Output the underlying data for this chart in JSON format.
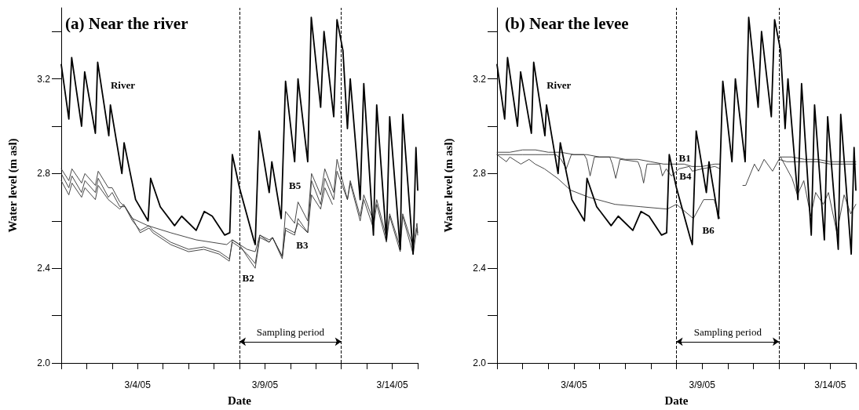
{
  "chart_data": [
    {
      "type": "line",
      "title": "(a) Near the river",
      "xlabel": "Date",
      "ylabel": "Water level (m asl)",
      "marker": "none",
      "grid": false,
      "xlim": [
        "--03-01",
        "--03-15"
      ],
      "xticks": [
        {
          "value": "--03-01",
          "label": null
        },
        {
          "value": "--03-02",
          "label": null
        },
        {
          "value": "--03-03",
          "label": null
        },
        {
          "value": "--03-04",
          "label": "3/4/05"
        },
        {
          "value": "--03-05",
          "label": null
        },
        {
          "value": "--03-06",
          "label": null
        },
        {
          "value": "--03-07",
          "label": null
        },
        {
          "value": "--03-08",
          "label": null
        },
        {
          "value": "--03-09",
          "label": "3/9/05"
        },
        {
          "value": "--03-10",
          "label": null
        },
        {
          "value": "--03-11",
          "label": null
        },
        {
          "value": "--03-12",
          "label": null
        },
        {
          "value": "--03-13",
          "label": null
        },
        {
          "value": "--03-14",
          "label": "3/14/05"
        },
        {
          "value": "--03-15",
          "label": null
        }
      ],
      "ylim": [
        2.0,
        3.5
      ],
      "yticks": [
        {
          "value": 2,
          "label": "2.0"
        },
        {
          "value": 2.2,
          "label": null
        },
        2.4,
        {
          "value": 2.6,
          "label": null
        },
        2.8,
        {
          "value": 3.0,
          "label": null
        },
        3.2,
        {
          "value": 3.4,
          "label": null
        }
      ],
      "ref_lines": [
        {
          "axis": "x",
          "value": "--03-08",
          "line_style": "dashed"
        },
        {
          "axis": "x",
          "value": "--03-12",
          "line_style": "dashed"
        }
      ],
      "annotations": [
        "Sampling period"
      ],
      "series": [
        {
          "name": "River",
          "color": "#000000",
          "x": [
            "--03-01T00:00",
            "--03-01T07:10",
            "--03-01T09:50",
            "--03-01T19:10",
            "--03-01T22:05",
            "--03-02T08:10",
            "--03-02T10:20",
            "--03-02T20:50",
            "--03-02T22:20",
            "--03-03T09:10",
            "--03-03T11:15",
            "--03-03T22:05",
            "--03-04T09:50",
            "--03-04T12:15",
            "--03-04T21:20",
            "--03-05T10:50",
            "--03-05T17:30",
            "--03-06T07:10",
            "--03-06T14:50",
            "--03-06T22:20",
            "--03-07T10:05",
            "--03-07T14:50",
            "--03-07T17:15",
            "--03-08T00:00",
            "--03-08T13:25",
            "--03-08T14:50",
            "--03-08T18:30",
            "--03-09T04:00",
            "--03-09T06:30",
            "--03-09T15:20",
            "--03-09T19:25",
            "--03-10T04:00",
            "--03-10T07:10",
            "--03-10T16:20",
            "--03-10T19:40",
            "--03-11T04:30",
            "--03-11T07:40",
            "--03-11T16:50",
            "--03-11T19:55",
            "--03-12T01:30",
            "--03-12T05:45",
            "--03-12T08:25",
            "--03-12T17:45",
            "--03-12T21:10",
            "--03-13T06:15",
            "--03-13T09:20",
            "--03-13T18:30",
            "--03-13T21:35",
            "--03-14T07:30",
            "--03-14T09:50",
            "--03-14T19:40",
            "--03-14T22:20",
            "--03-15T00:00"
          ],
          "values": [
            3.26,
            3.03,
            3.29,
            3.0,
            3.23,
            2.97,
            3.27,
            2.96,
            3.09,
            2.8,
            2.93,
            2.69,
            2.6,
            2.78,
            2.66,
            2.58,
            2.62,
            2.56,
            2.64,
            2.62,
            2.54,
            2.55,
            2.88,
            2.74,
            2.52,
            2.5,
            2.98,
            2.72,
            2.85,
            2.61,
            3.19,
            2.85,
            3.2,
            2.85,
            3.46,
            3.08,
            3.4,
            3.04,
            3.45,
            3.32,
            2.99,
            3.2,
            2.69,
            3.18,
            2.54,
            3.09,
            2.52,
            3.04,
            2.48,
            3.05,
            2.46,
            2.91,
            2.73
          ]
        },
        {
          "name": "B5",
          "color": "#333333",
          "x": [
            "--03-01T00:00",
            "--03-01T07:10",
            "--03-01T10:05",
            "--03-01T19:10",
            "--03-01T22:20",
            "--03-02T08:10",
            "--03-02T10:50",
            "--03-02T20:25",
            "--03-03T00:00",
            "--03-03T07:10",
            "--03-03T12:00",
            "--03-03T19:10",
            "--03-04T09:35",
            "--03-05T07:10",
            "--03-06T07:10",
            "--03-07T12:00",
            "--03-07T17:15",
            "--03-08T07:10",
            "--03-08T14:50",
            "--03-08T19:10",
            "--03-09T04:00",
            "--03-09T07:10",
            "--03-09T16:20",
            "--03-09T19:25",
            "--03-10T04:00",
            "--03-10T07:10",
            "--03-10T16:20",
            "--03-10T19:55",
            "--03-11T04:30",
            "--03-11T08:25",
            "--03-11T16:50",
            "--03-11T19:55",
            "--03-12T05:45",
            "--03-12T08:25",
            "--03-12T17:45",
            "--03-12T21:10",
            "--03-13T06:15",
            "--03-13T09:20",
            "--03-13T18:30",
            "--03-13T21:35",
            "--03-14T07:30",
            "--03-14T09:50",
            "--03-14T19:40",
            "--03-14T23:15",
            "--03-15T00:00"
          ],
          "values": [
            2.82,
            2.77,
            2.82,
            2.76,
            2.8,
            2.75,
            2.81,
            2.74,
            2.74,
            2.68,
            2.66,
            2.61,
            2.58,
            2.55,
            2.52,
            2.5,
            2.52,
            2.48,
            2.47,
            2.54,
            2.52,
            2.53,
            2.45,
            2.64,
            2.59,
            2.68,
            2.6,
            2.8,
            2.71,
            2.82,
            2.72,
            2.86,
            2.69,
            2.77,
            2.62,
            2.71,
            2.6,
            2.69,
            2.53,
            2.63,
            2.49,
            2.63,
            2.49,
            2.59,
            2.55
          ]
        },
        {
          "name": "B2",
          "color": "#333333",
          "x": [
            "--03-01T00:00",
            "--03-01T07:10",
            "--03-01T10:05",
            "--03-01T19:10",
            "--03-01T22:20",
            "--03-02T08:10",
            "--03-02T10:50",
            "--03-02T20:25",
            "--03-03T07:10",
            "--03-03T10:50",
            "--03-03T19:10",
            "--03-04T02:25",
            "--03-04T10:50",
            "--03-04T14:25",
            "--03-05T07:10",
            "--03-06T00:00",
            "--03-06T14:25",
            "--03-07T04:50",
            "--03-07T14:25",
            "--03-07T17:15",
            "--03-08T00:00",
            "--03-08T07:10",
            "--03-08T14:50",
            "--03-08T19:10",
            "--03-09T04:00",
            "--03-09T07:10",
            "--03-09T16:20",
            "--03-09T19:25",
            "--03-10T04:00",
            "--03-10T07:10",
            "--03-10T16:20",
            "--03-10T19:55",
            "--03-11T04:30",
            "--03-11T08:25",
            "--03-11T16:50",
            "--03-11T19:55",
            "--03-12T05:45",
            "--03-12T08:25",
            "--03-12T17:45",
            "--03-12T21:10",
            "--03-13T06:15",
            "--03-13T09:20",
            "--03-13T18:30",
            "--03-13T21:35",
            "--03-14T07:30",
            "--03-14T09:50",
            "--03-14T19:40",
            "--03-14T23:15",
            "--03-15T00:00"
          ],
          "values": [
            2.77,
            2.71,
            2.76,
            2.7,
            2.74,
            2.69,
            2.75,
            2.69,
            2.65,
            2.67,
            2.61,
            2.55,
            2.57,
            2.55,
            2.5,
            2.47,
            2.48,
            2.46,
            2.43,
            2.52,
            2.5,
            2.45,
            2.4,
            2.53,
            2.51,
            2.53,
            2.44,
            2.57,
            2.55,
            2.59,
            2.55,
            2.77,
            2.67,
            2.78,
            2.69,
            2.81,
            2.69,
            2.76,
            2.6,
            2.69,
            2.57,
            2.67,
            2.51,
            2.62,
            2.47,
            2.62,
            2.46,
            2.57,
            2.54
          ]
        },
        {
          "name": "B3",
          "color": "#333333",
          "x": [
            "--03-01T00:00",
            "--03-01T07:10",
            "--03-01T10:05",
            "--03-01T19:10",
            "--03-01T22:20",
            "--03-02T08:10",
            "--03-02T10:50",
            "--03-02T20:25",
            "--03-03T00:00",
            "--03-03T07:10",
            "--03-03T12:00",
            "--03-03T19:10",
            "--03-04T02:25",
            "--03-04T10:50",
            "--03-04T14:25",
            "--03-05T07:10",
            "--03-06T00:00",
            "--03-06T14:25",
            "--03-07T04:50",
            "--03-07T14:25",
            "--03-07T17:15",
            "--03-08T00:00",
            "--03-08T07:10",
            "--03-08T14:50",
            "--03-08T19:10",
            "--03-09T04:00",
            "--03-09T07:10",
            "--03-09T16:20",
            "--03-09T19:25",
            "--03-10T04:00",
            "--03-10T07:10",
            "--03-10T16:20",
            "--03-10T19:55",
            "--03-11T04:30",
            "--03-11T08:25",
            "--03-11T15:35"
          ],
          "values": [
            2.8,
            2.74,
            2.79,
            2.72,
            2.77,
            2.72,
            2.78,
            2.7,
            2.72,
            2.66,
            2.66,
            2.6,
            2.56,
            2.58,
            2.56,
            2.51,
            2.48,
            2.49,
            2.47,
            2.44,
            2.51,
            2.49,
            2.46,
            2.42,
            2.54,
            2.51,
            2.53,
            2.45,
            2.56,
            2.54,
            2.61,
            2.55,
            2.71,
            2.65,
            2.74,
            2.67
          ]
        }
      ]
    },
    {
      "type": "line",
      "title": "(b) Near the levee",
      "xlabel": "Date",
      "ylabel": "Water level (m asl)",
      "marker": "none",
      "grid": false,
      "xlim": [
        "--03-01",
        "--03-15"
      ],
      "xticks": [
        {
          "value": "--03-01",
          "label": null
        },
        {
          "value": "--03-02",
          "label": null
        },
        {
          "value": "--03-03",
          "label": null
        },
        {
          "value": "--03-04",
          "label": "3/4/05"
        },
        {
          "value": "--03-05",
          "label": null
        },
        {
          "value": "--03-06",
          "label": null
        },
        {
          "value": "--03-07",
          "label": null
        },
        {
          "value": "--03-08",
          "label": null
        },
        {
          "value": "--03-09",
          "label": "3/9/05"
        },
        {
          "value": "--03-10",
          "label": null
        },
        {
          "value": "--03-11",
          "label": null
        },
        {
          "value": "--03-12",
          "label": null
        },
        {
          "value": "--03-13",
          "label": null
        },
        {
          "value": "--03-14",
          "label": "3/14/05"
        },
        {
          "value": "--03-15",
          "label": null
        }
      ],
      "ylim": [
        2.0,
        3.5
      ],
      "yticks": [
        {
          "value": 2,
          "label": "2.0"
        },
        {
          "value": 2.2,
          "label": null
        },
        2.4,
        {
          "value": 2.6,
          "label": null
        },
        2.8,
        {
          "value": 3.0,
          "label": null
        },
        3.2,
        {
          "value": 3.4,
          "label": null
        }
      ],
      "ref_lines": [
        {
          "axis": "x",
          "value": "--03-08",
          "line_style": "dashed"
        },
        {
          "axis": "x",
          "value": "--03-12",
          "line_style": "dashed"
        }
      ],
      "annotations": [
        "Sampling period"
      ],
      "series": [
        {
          "name": "River",
          "color": "#000000",
          "x": [
            "--03-01T00:00",
            "--03-01T07:10",
            "--03-01T09:50",
            "--03-01T19:10",
            "--03-01T22:05",
            "--03-02T08:10",
            "--03-02T10:20",
            "--03-02T20:50",
            "--03-02T22:20",
            "--03-03T09:10",
            "--03-03T11:15",
            "--03-03T22:05",
            "--03-04T09:50",
            "--03-04T12:15",
            "--03-04T21:20",
            "--03-05T10:50",
            "--03-05T17:30",
            "--03-06T07:10",
            "--03-06T14:50",
            "--03-06T22:20",
            "--03-07T10:05",
            "--03-07T14:50",
            "--03-07T17:15",
            "--03-08T00:00",
            "--03-08T13:25",
            "--03-08T14:50",
            "--03-08T18:30",
            "--03-09T04:00",
            "--03-09T06:30",
            "--03-09T15:20",
            "--03-09T19:25",
            "--03-10T04:00",
            "--03-10T07:10",
            "--03-10T16:20",
            "--03-10T19:40",
            "--03-11T04:30",
            "--03-11T07:40",
            "--03-11T16:50",
            "--03-11T19:55",
            "--03-12T01:30",
            "--03-12T05:45",
            "--03-12T08:25",
            "--03-12T17:45",
            "--03-12T21:10",
            "--03-13T06:15",
            "--03-13T09:20",
            "--03-13T18:30",
            "--03-13T21:35",
            "--03-14T07:30",
            "--03-14T09:50",
            "--03-14T19:40",
            "--03-14T22:20",
            "--03-15T00:00"
          ],
          "values": [
            3.26,
            3.03,
            3.29,
            3.0,
            3.23,
            2.97,
            3.27,
            2.96,
            3.09,
            2.8,
            2.93,
            2.69,
            2.6,
            2.78,
            2.66,
            2.58,
            2.62,
            2.56,
            2.64,
            2.62,
            2.54,
            2.55,
            2.88,
            2.74,
            2.52,
            2.5,
            2.98,
            2.72,
            2.85,
            2.61,
            3.19,
            2.85,
            3.2,
            2.85,
            3.46,
            3.08,
            3.4,
            3.04,
            3.45,
            3.32,
            2.99,
            3.2,
            2.69,
            3.18,
            2.54,
            3.09,
            2.52,
            3.04,
            2.48,
            3.05,
            2.46,
            2.91,
            2.73
          ]
        },
        {
          "name": "B1",
          "color": "#333333",
          "x": [
            "--03-01T00:00",
            "--03-01T12:00",
            "--03-02T00:00",
            "--03-02T12:00",
            "--03-03T00:00",
            "--03-03T12:00",
            "--03-04T00:00",
            "--03-04T12:00",
            "--03-05T00:00",
            "--03-05T12:00",
            "--03-06T00:00",
            "--03-06T12:00",
            "--03-07T00:00",
            "--03-07T12:00",
            "--03-08T00:00",
            "--03-08T07:10",
            "--03-08T14:25",
            "--03-09T00:00",
            "--03-09T12:00",
            "--03-09T16:50",
            "--03-10T12:00",
            "--03-12T00:00",
            "--03-12T12:00",
            "--03-13T00:00",
            "--03-13T12:00",
            "--03-14T00:00",
            "--03-14T12:00",
            "--03-15T00:00"
          ],
          "values": [
            2.89,
            2.89,
            2.9,
            2.9,
            2.89,
            2.89,
            2.88,
            2.88,
            2.87,
            2.87,
            2.86,
            2.86,
            2.85,
            2.84,
            2.84,
            2.84,
            2.83,
            2.83,
            2.84,
            2.84,
            null,
            2.87,
            2.87,
            2.86,
            2.86,
            2.85,
            2.85,
            2.85
          ]
        },
        {
          "name": "B4",
          "color": "#333333",
          "x": [
            "--03-01T00:00",
            "--03-01T12:00",
            "--03-02T00:00",
            "--03-02T12:00",
            "--03-03T00:00",
            "--03-03T07:10",
            "--03-03T12:00",
            "--03-03T16:50",
            "--03-03T21:35",
            "--03-04T09:35",
            "--03-04T12:00",
            "--03-04T15:10",
            "--03-04T19:10",
            "--03-05T09:35",
            "--03-05T12:00",
            "--03-05T15:10",
            "--03-05T19:10",
            "--03-06T12:00",
            "--03-06T14:25",
            "--03-06T17:15",
            "--03-06T20:25",
            "--03-07T08:25",
            "--03-07T10:50",
            "--03-07T14:25",
            "--03-07T19:10",
            "--03-08T02:25",
            "--03-08T12:00",
            "--03-08T14:50",
            "--03-09T00:00",
            "--03-09T12:00",
            "--03-09T16:50",
            "--03-10T06:00",
            "--03-10T14:10",
            "--03-10T16:50",
            "--03-11T01:00",
            "--03-11T04:50",
            "--03-11T10:05",
            "--03-11T18:00",
            "--03-12T00:00",
            "--03-12T07:10",
            "--03-12T14:25",
            "--03-13T00:00",
            "--03-13T12:00",
            "--03-14T00:00",
            "--03-14T12:00",
            "--03-15T00:00"
          ],
          "values": [
            2.88,
            2.88,
            2.88,
            2.88,
            2.88,
            2.88,
            2.86,
            2.82,
            2.88,
            2.88,
            2.86,
            2.79,
            2.87,
            2.87,
            2.84,
            2.78,
            2.86,
            2.85,
            2.82,
            2.76,
            2.84,
            2.84,
            2.79,
            2.82,
            2.79,
            2.82,
            2.83,
            2.81,
            2.82,
            2.83,
            2.82,
            null,
            2.75,
            2.75,
            2.84,
            2.81,
            2.86,
            2.81,
            2.86,
            2.85,
            2.85,
            2.85,
            2.85,
            2.84,
            2.84,
            2.84
          ]
        },
        {
          "name": "B6",
          "color": "#333333",
          "x": [
            "--03-01T00:00",
            "--03-01T08:50",
            "--03-01T12:00",
            "--03-01T22:20",
            "--03-02T06:00",
            "--03-02T11:45",
            "--03-02T20:25",
            "--03-03T08:40",
            "--03-03T20:50",
            "--03-04T13:55",
            "--03-05T14:25",
            "--03-06T14:25",
            "--03-07T15:20",
            "--03-08T00:00",
            "--03-08T15:50",
            "--03-09T01:30",
            "--03-09T11:15",
            "--03-09T16:35",
            "--03-10T12:00",
            "--03-12T01:30",
            "--03-12T12:15",
            "--03-12T17:15",
            "--03-12T23:15",
            "--03-13T05:45",
            "--03-13T10:20",
            "--03-13T17:30",
            "--03-13T22:20",
            "--03-14T06:15",
            "--03-14T13:00",
            "--03-14T19:10",
            "--03-15T00:00"
          ],
          "values": [
            2.88,
            2.85,
            2.87,
            2.84,
            2.86,
            2.84,
            2.82,
            2.78,
            2.73,
            2.7,
            2.67,
            2.66,
            2.65,
            2.67,
            2.61,
            2.69,
            2.69,
            2.61,
            null,
            2.87,
            2.78,
            2.71,
            2.77,
            2.62,
            2.72,
            2.67,
            2.72,
            2.55,
            2.71,
            2.63,
            2.67
          ]
        }
      ]
    }
  ]
}
